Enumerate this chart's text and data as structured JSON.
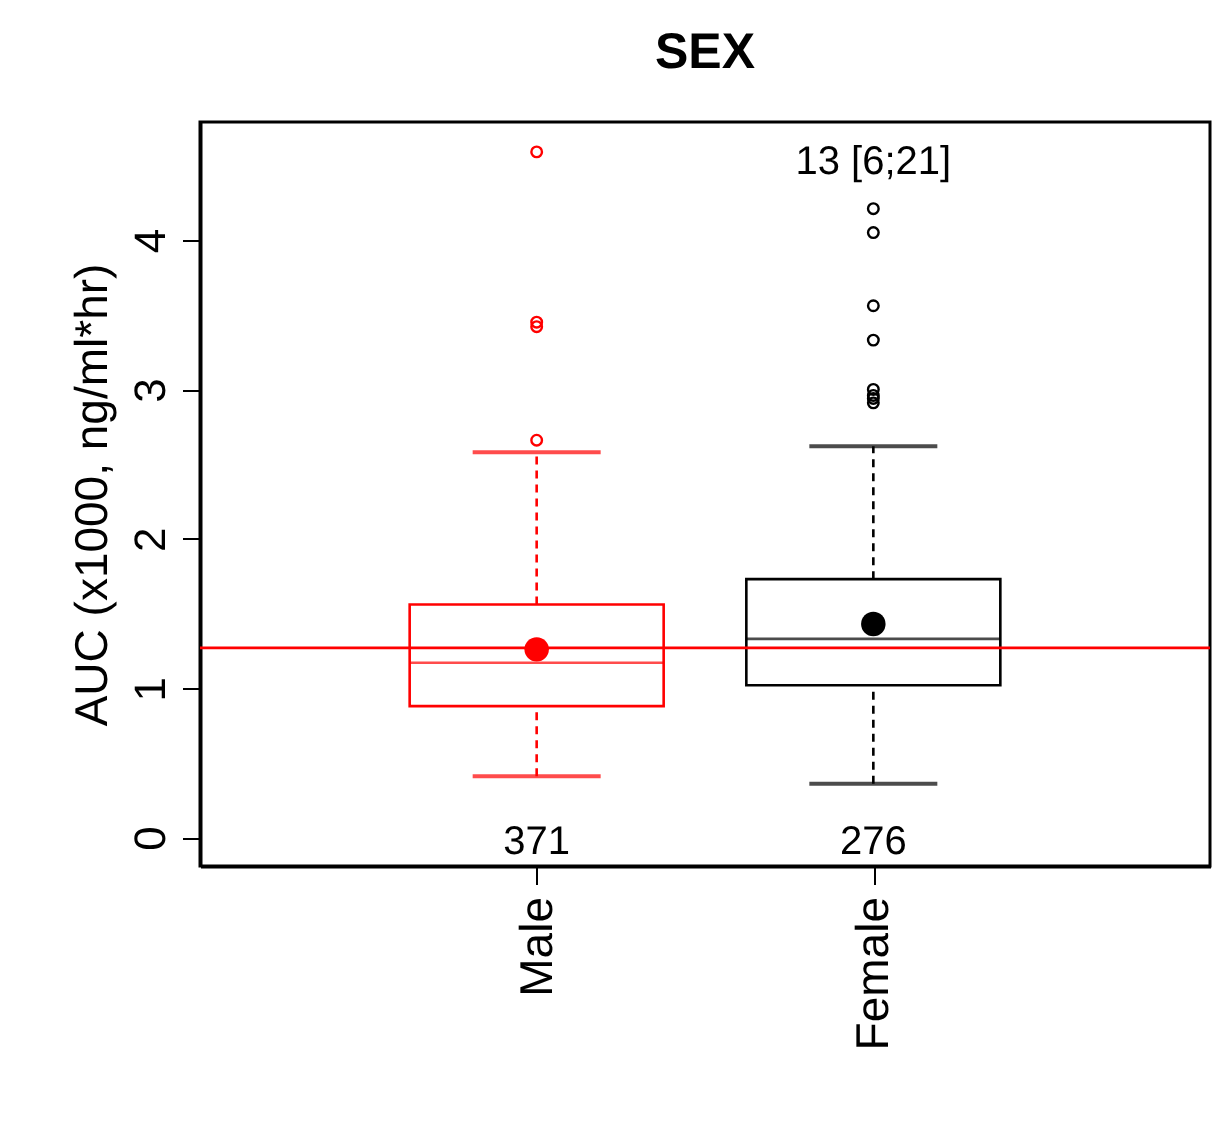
{
  "chart_data": {
    "type": "box",
    "title": "SEX",
    "ylabel": "AUC (x1000, ng/ml*hr)",
    "categories": [
      "Male",
      "Female"
    ],
    "colors": [
      "#ff0000",
      "#000000"
    ],
    "boxes": [
      {
        "low": 0.41,
        "q1": 0.88,
        "median": 1.17,
        "q3": 1.56,
        "high": 2.58,
        "mean": 1.26,
        "outliers": [
          2.66,
          3.42,
          3.45,
          4.59
        ]
      },
      {
        "low": 0.36,
        "q1": 1.02,
        "median": 1.33,
        "q3": 1.73,
        "high": 2.62,
        "mean": 1.43,
        "outliers": [
          2.91,
          2.94,
          2.96,
          3.0,
          3.33,
          3.56,
          4.05,
          4.21
        ]
      }
    ],
    "ylim": [
      -0.19,
      4.79
    ],
    "yticks": [
      0,
      1,
      2,
      3,
      4
    ],
    "ref_lines": [
      {
        "axis": "y",
        "value": 1.27,
        "color": "#ff0000"
      }
    ],
    "annotations": [
      "371",
      "276",
      "13 [6;21]"
    ]
  }
}
